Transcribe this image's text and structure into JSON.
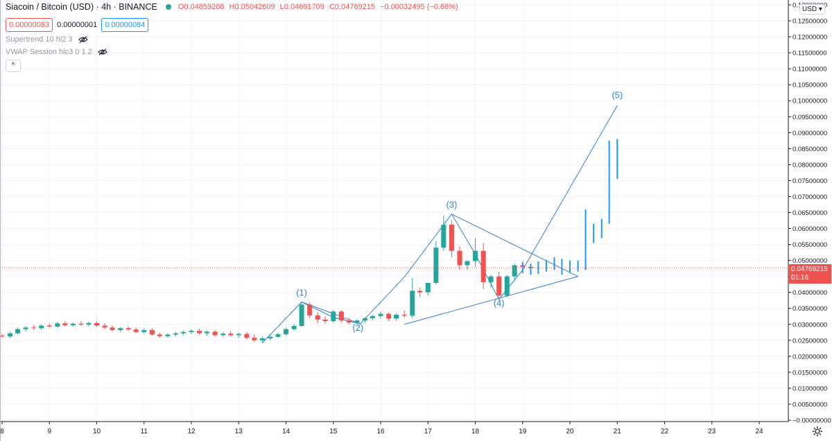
{
  "header": {
    "title": "Siacoin / Bitcoin (USD) · 4h · BINANCE",
    "ohlc": {
      "o": "O0.04859208",
      "h": "H0.05042609",
      "l": "L0.04691709",
      "c": "C0.04769215",
      "change": "−0.00032495 (−0.68%)"
    },
    "bid": "0.00000083",
    "spread": "0.00000001",
    "ask": "0.00000084"
  },
  "indicators": [
    {
      "label": "Supertrend 10 hl2 3",
      "icon": "eye-off-icon"
    },
    {
      "label": "VWAP Session hlc3 0 1 2",
      "icon": "eye-off-icon"
    }
  ],
  "collapse_symbol": "^",
  "currency_selector": "USD ▾",
  "last_price": {
    "value": "0.04769215",
    "countdown": "01:16",
    "color": "#ef5350"
  },
  "colors": {
    "up": "#26a69a",
    "down": "#ef5350",
    "projection": "#2196f3",
    "wave": "#2f7fd1"
  },
  "chart_data": {
    "type": "candlestick",
    "title": "Siacoin / Bitcoin (USD) · 4h · BINANCE",
    "ylim": [
      0,
      0.13
    ],
    "xlim": [
      8,
      24.6
    ],
    "y_ticks": [
      "0.13000000",
      "0.12500000",
      "0.12000000",
      "0.11500000",
      "0.11000000",
      "0.10500000",
      "0.10000000",
      "0.09500000",
      "0.09000000",
      "0.08500000",
      "0.08000000",
      "0.07500000",
      "0.07000000",
      "0.06500000",
      "0.06000000",
      "0.05500000",
      "0.05000000",
      "0.04500000",
      "0.04000000",
      "0.03500000",
      "0.03000000",
      "0.02500000",
      "0.02000000",
      "0.01500000",
      "0.01000000",
      "0.00500000",
      "−0.00000000"
    ],
    "y_tick_values": [
      0.13,
      0.125,
      0.12,
      0.115,
      0.11,
      0.105,
      0.1,
      0.095,
      0.09,
      0.085,
      0.08,
      0.075,
      0.07,
      0.065,
      0.06,
      0.055,
      0.05,
      0.045,
      0.04,
      0.035,
      0.03,
      0.025,
      0.02,
      0.015,
      0.01,
      0.005,
      0
    ],
    "x_ticks": [
      "8",
      "9",
      "10",
      "11",
      "12",
      "13",
      "14",
      "15",
      "16",
      "17",
      "18",
      "19",
      "20",
      "21",
      "22",
      "23",
      "24"
    ],
    "x_tick_values": [
      8,
      9,
      10,
      11,
      12,
      13,
      14,
      15,
      16,
      17,
      18,
      19,
      20,
      21,
      22,
      23,
      24
    ],
    "candles": [
      {
        "t": 8.0,
        "o": 0.0265,
        "h": 0.027,
        "l": 0.0258,
        "c": 0.0262
      },
      {
        "t": 8.17,
        "o": 0.0262,
        "h": 0.0277,
        "l": 0.0258,
        "c": 0.0272
      },
      {
        "t": 8.33,
        "o": 0.0272,
        "h": 0.029,
        "l": 0.0268,
        "c": 0.0285
      },
      {
        "t": 8.5,
        "o": 0.0285,
        "h": 0.0295,
        "l": 0.0278,
        "c": 0.029
      },
      {
        "t": 8.67,
        "o": 0.029,
        "h": 0.0298,
        "l": 0.0282,
        "c": 0.0288
      },
      {
        "t": 8.83,
        "o": 0.0288,
        "h": 0.03,
        "l": 0.0283,
        "c": 0.0296
      },
      {
        "t": 9.0,
        "o": 0.0296,
        "h": 0.0302,
        "l": 0.029,
        "c": 0.0293
      },
      {
        "t": 9.17,
        "o": 0.0293,
        "h": 0.0308,
        "l": 0.0289,
        "c": 0.0303
      },
      {
        "t": 9.33,
        "o": 0.0303,
        "h": 0.031,
        "l": 0.0293,
        "c": 0.0297
      },
      {
        "t": 9.5,
        "o": 0.0297,
        "h": 0.0306,
        "l": 0.0292,
        "c": 0.0302
      },
      {
        "t": 9.67,
        "o": 0.0302,
        "h": 0.031,
        "l": 0.0295,
        "c": 0.0299
      },
      {
        "t": 9.83,
        "o": 0.0299,
        "h": 0.0309,
        "l": 0.0294,
        "c": 0.0304
      },
      {
        "t": 10.0,
        "o": 0.0304,
        "h": 0.031,
        "l": 0.0292,
        "c": 0.0296
      },
      {
        "t": 10.17,
        "o": 0.0296,
        "h": 0.0303,
        "l": 0.0285,
        "c": 0.029
      },
      {
        "t": 10.33,
        "o": 0.029,
        "h": 0.0297,
        "l": 0.0278,
        "c": 0.0282
      },
      {
        "t": 10.5,
        "o": 0.0282,
        "h": 0.0292,
        "l": 0.0276,
        "c": 0.0288
      },
      {
        "t": 10.67,
        "o": 0.0288,
        "h": 0.0294,
        "l": 0.0279,
        "c": 0.0284
      },
      {
        "t": 10.83,
        "o": 0.0284,
        "h": 0.029,
        "l": 0.0272,
        "c": 0.0276
      },
      {
        "t": 11.0,
        "o": 0.0276,
        "h": 0.0287,
        "l": 0.027,
        "c": 0.0282
      },
      {
        "t": 11.17,
        "o": 0.0282,
        "h": 0.0289,
        "l": 0.0264,
        "c": 0.0268
      },
      {
        "t": 11.33,
        "o": 0.0268,
        "h": 0.0275,
        "l": 0.0258,
        "c": 0.0263
      },
      {
        "t": 11.5,
        "o": 0.0263,
        "h": 0.0272,
        "l": 0.0258,
        "c": 0.0268
      },
      {
        "t": 11.67,
        "o": 0.0268,
        "h": 0.0276,
        "l": 0.0262,
        "c": 0.0272
      },
      {
        "t": 11.83,
        "o": 0.0272,
        "h": 0.028,
        "l": 0.0266,
        "c": 0.0276
      },
      {
        "t": 12.0,
        "o": 0.0276,
        "h": 0.0285,
        "l": 0.0269,
        "c": 0.028
      },
      {
        "t": 12.17,
        "o": 0.028,
        "h": 0.0286,
        "l": 0.0268,
        "c": 0.0272
      },
      {
        "t": 12.33,
        "o": 0.0272,
        "h": 0.0281,
        "l": 0.0264,
        "c": 0.0277
      },
      {
        "t": 12.5,
        "o": 0.0277,
        "h": 0.0283,
        "l": 0.0262,
        "c": 0.0266
      },
      {
        "t": 12.67,
        "o": 0.0266,
        "h": 0.0276,
        "l": 0.0261,
        "c": 0.0271
      },
      {
        "t": 12.83,
        "o": 0.0271,
        "h": 0.0278,
        "l": 0.0261,
        "c": 0.0266
      },
      {
        "t": 13.0,
        "o": 0.0266,
        "h": 0.0274,
        "l": 0.0258,
        "c": 0.027
      },
      {
        "t": 13.17,
        "o": 0.027,
        "h": 0.0276,
        "l": 0.0253,
        "c": 0.0258
      },
      {
        "t": 13.33,
        "o": 0.0258,
        "h": 0.0268,
        "l": 0.0245,
        "c": 0.025
      },
      {
        "t": 13.5,
        "o": 0.025,
        "h": 0.0263,
        "l": 0.0244,
        "c": 0.0256
      },
      {
        "t": 13.67,
        "o": 0.0256,
        "h": 0.0266,
        "l": 0.025,
        "c": 0.0261
      },
      {
        "t": 13.83,
        "o": 0.0261,
        "h": 0.0274,
        "l": 0.0257,
        "c": 0.0269
      },
      {
        "t": 14.0,
        "o": 0.0269,
        "h": 0.029,
        "l": 0.0265,
        "c": 0.0285
      },
      {
        "t": 14.17,
        "o": 0.0285,
        "h": 0.03,
        "l": 0.028,
        "c": 0.0295
      },
      {
        "t": 14.33,
        "o": 0.0295,
        "h": 0.0372,
        "l": 0.0292,
        "c": 0.0362
      },
      {
        "t": 14.5,
        "o": 0.0362,
        "h": 0.037,
        "l": 0.032,
        "c": 0.0328
      },
      {
        "t": 14.67,
        "o": 0.0328,
        "h": 0.0338,
        "l": 0.0303,
        "c": 0.0315
      },
      {
        "t": 14.83,
        "o": 0.0315,
        "h": 0.0325,
        "l": 0.0302,
        "c": 0.031
      },
      {
        "t": 15.0,
        "o": 0.031,
        "h": 0.0345,
        "l": 0.0305,
        "c": 0.034
      },
      {
        "t": 15.17,
        "o": 0.034,
        "h": 0.0345,
        "l": 0.0305,
        "c": 0.0312
      },
      {
        "t": 15.33,
        "o": 0.0312,
        "h": 0.032,
        "l": 0.03,
        "c": 0.0306
      },
      {
        "t": 15.5,
        "o": 0.0306,
        "h": 0.0316,
        "l": 0.0302,
        "c": 0.0312
      },
      {
        "t": 15.67,
        "o": 0.0312,
        "h": 0.0323,
        "l": 0.0305,
        "c": 0.0319
      },
      {
        "t": 15.83,
        "o": 0.0319,
        "h": 0.033,
        "l": 0.0313,
        "c": 0.0326
      },
      {
        "t": 16.0,
        "o": 0.0326,
        "h": 0.034,
        "l": 0.0318,
        "c": 0.0333
      },
      {
        "t": 16.17,
        "o": 0.0333,
        "h": 0.0338,
        "l": 0.031,
        "c": 0.0318
      },
      {
        "t": 16.33,
        "o": 0.0318,
        "h": 0.0335,
        "l": 0.0312,
        "c": 0.033
      },
      {
        "t": 16.5,
        "o": 0.033,
        "h": 0.0345,
        "l": 0.032,
        "c": 0.0327
      },
      {
        "t": 16.67,
        "o": 0.0327,
        "h": 0.0445,
        "l": 0.032,
        "c": 0.0405
      },
      {
        "t": 16.83,
        "o": 0.0405,
        "h": 0.0415,
        "l": 0.0385,
        "c": 0.04
      },
      {
        "t": 17.0,
        "o": 0.04,
        "h": 0.042,
        "l": 0.039,
        "c": 0.043
      },
      {
        "t": 17.17,
        "o": 0.043,
        "h": 0.056,
        "l": 0.0425,
        "c": 0.054
      },
      {
        "t": 17.33,
        "o": 0.054,
        "h": 0.064,
        "l": 0.053,
        "c": 0.0612
      },
      {
        "t": 17.5,
        "o": 0.0612,
        "h": 0.0625,
        "l": 0.051,
        "c": 0.053
      },
      {
        "t": 17.67,
        "o": 0.053,
        "h": 0.0545,
        "l": 0.047,
        "c": 0.0485
      },
      {
        "t": 17.83,
        "o": 0.0485,
        "h": 0.05,
        "l": 0.047,
        "c": 0.0498
      },
      {
        "t": 18.0,
        "o": 0.0498,
        "h": 0.057,
        "l": 0.048,
        "c": 0.053
      },
      {
        "t": 18.17,
        "o": 0.053,
        "h": 0.0555,
        "l": 0.041,
        "c": 0.0432
      },
      {
        "t": 18.33,
        "o": 0.0432,
        "h": 0.0455,
        "l": 0.0415,
        "c": 0.045
      },
      {
        "t": 18.5,
        "o": 0.045,
        "h": 0.0465,
        "l": 0.038,
        "c": 0.039
      },
      {
        "t": 18.67,
        "o": 0.039,
        "h": 0.0455,
        "l": 0.0385,
        "c": 0.045
      },
      {
        "t": 18.83,
        "o": 0.045,
        "h": 0.049,
        "l": 0.044,
        "c": 0.0485
      },
      {
        "t": 19.0,
        "o": 0.0485,
        "h": 0.0492,
        "l": 0.047,
        "c": 0.048
      },
      {
        "t": 19.17,
        "o": 0.048,
        "h": 0.0488,
        "l": 0.0468,
        "c": 0.0476
      }
    ],
    "projection_bars": [
      {
        "t": 19.0,
        "h": 0.0495,
        "l": 0.046
      },
      {
        "t": 19.17,
        "h": 0.049,
        "l": 0.0455
      },
      {
        "t": 19.33,
        "h": 0.0497,
        "l": 0.0458
      },
      {
        "t": 19.5,
        "h": 0.0502,
        "l": 0.0465
      },
      {
        "t": 19.67,
        "h": 0.051,
        "l": 0.047
      },
      {
        "t": 19.83,
        "h": 0.0505,
        "l": 0.0455
      },
      {
        "t": 20.0,
        "h": 0.05,
        "l": 0.0462
      },
      {
        "t": 20.17,
        "h": 0.05,
        "l": 0.0465
      },
      {
        "t": 20.33,
        "h": 0.066,
        "l": 0.047
      },
      {
        "t": 20.5,
        "h": 0.0615,
        "l": 0.0555
      },
      {
        "t": 20.67,
        "h": 0.063,
        "l": 0.057
      },
      {
        "t": 20.83,
        "h": 0.0875,
        "l": 0.0615
      },
      {
        "t": 21.0,
        "h": 0.088,
        "l": 0.0755
      }
    ],
    "wave_path": [
      {
        "t": 13.5,
        "y": 0.0242
      },
      {
        "t": 14.33,
        "y": 0.037
      },
      {
        "t": 15.0,
        "y": 0.0322
      },
      {
        "t": 15.57,
        "y": 0.0302
      },
      {
        "t": 16.5,
        "y": 0.0448
      },
      {
        "t": 17.5,
        "y": 0.0645
      },
      {
        "t": 18.0,
        "y": 0.052
      },
      {
        "t": 18.5,
        "y": 0.0378
      },
      {
        "t": 19.0,
        "y": 0.047
      },
      {
        "t": 21.0,
        "y": 0.0985
      }
    ],
    "triangle_upper": [
      {
        "t": 17.5,
        "y": 0.0645
      },
      {
        "t": 20.17,
        "y": 0.045
      }
    ],
    "triangle_lower": [
      {
        "t": 16.5,
        "y": 0.03
      },
      {
        "t": 20.17,
        "y": 0.045
      }
    ],
    "small_wedge": [
      [
        {
          "t": 14.33,
          "y": 0.037
        },
        {
          "t": 15.57,
          "y": 0.0302
        }
      ],
      [
        {
          "t": 15.0,
          "y": 0.0322
        },
        {
          "t": 15.57,
          "y": 0.0302
        }
      ]
    ],
    "wave_labels": [
      {
        "text": "(1)",
        "t": 14.33,
        "y": 0.039
      },
      {
        "text": "(2)",
        "t": 15.52,
        "y": 0.028
      },
      {
        "text": "(3)",
        "t": 17.5,
        "y": 0.0665
      },
      {
        "text": "(4)",
        "t": 18.5,
        "y": 0.0357
      },
      {
        "text": "(5)",
        "t": 21.0,
        "y": 0.1008
      }
    ]
  }
}
